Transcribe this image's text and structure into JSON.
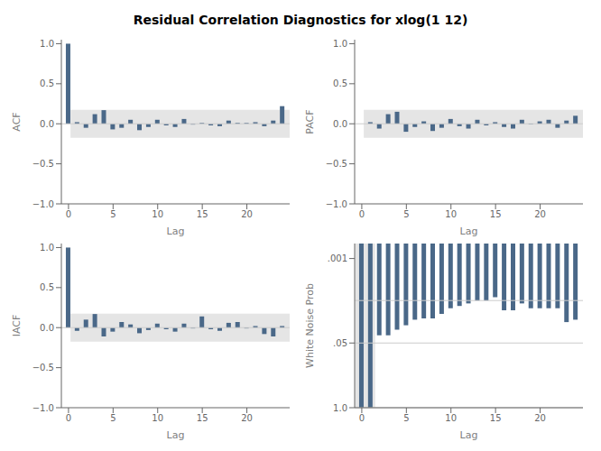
{
  "title": "Residual Correlation Diagnostics for xlog(1 12)",
  "chart_data": [
    {
      "type": "bar",
      "xlabel": "Lag",
      "ylabel": "ACF",
      "color": "#4a6888",
      "x": [
        0,
        1,
        2,
        3,
        4,
        5,
        6,
        7,
        8,
        9,
        10,
        11,
        12,
        13,
        14,
        15,
        16,
        17,
        18,
        19,
        20,
        21,
        22,
        23,
        24
      ],
      "values": [
        1.0,
        0.02,
        -0.05,
        0.12,
        0.17,
        -0.07,
        -0.05,
        0.05,
        -0.08,
        -0.04,
        0.05,
        -0.02,
        -0.04,
        0.06,
        -0.01,
        0.01,
        -0.02,
        -0.03,
        0.04,
        0.01,
        0.01,
        0.02,
        -0.03,
        0.04,
        0.22
      ],
      "xlim": [
        -0.8,
        24.8
      ],
      "xticks": [
        0,
        5,
        10,
        15,
        20
      ],
      "ylim": [
        -1.0,
        1.05
      ],
      "yticks": [
        {
          "value": -1.0,
          "label": "−1.0"
        },
        {
          "value": -0.5,
          "label": "−0.5"
        },
        {
          "value": 0.0,
          "label": "0.0"
        },
        {
          "value": 0.5,
          "label": "0.5"
        },
        {
          "value": 1.0,
          "label": "1.0"
        }
      ],
      "band": [
        -0.175,
        0.175
      ],
      "ref_lines": [
        0
      ],
      "grid": false
    },
    {
      "type": "bar",
      "xlabel": "Lag",
      "ylabel": "PACF",
      "color": "#4a6888",
      "x": [
        0,
        1,
        2,
        3,
        4,
        5,
        6,
        7,
        8,
        9,
        10,
        11,
        12,
        13,
        14,
        15,
        16,
        17,
        18,
        19,
        20,
        21,
        22,
        23,
        24
      ],
      "values": [
        0.0,
        0.02,
        -0.06,
        0.12,
        0.15,
        -0.1,
        -0.04,
        0.03,
        -0.09,
        -0.05,
        0.06,
        -0.03,
        -0.06,
        0.05,
        -0.02,
        0.02,
        -0.04,
        -0.06,
        0.05,
        -0.01,
        0.03,
        0.05,
        -0.05,
        0.04,
        0.1
      ],
      "xlim": [
        -0.8,
        24.8
      ],
      "xticks": [
        0,
        5,
        10,
        15,
        20
      ],
      "ylim": [
        -1.0,
        1.05
      ],
      "yticks": [
        {
          "value": -1.0,
          "label": "−1.0"
        },
        {
          "value": -0.5,
          "label": "−0.5"
        },
        {
          "value": 0.0,
          "label": "0.0"
        },
        {
          "value": 0.5,
          "label": "0.5"
        },
        {
          "value": 1.0,
          "label": "1.0"
        }
      ],
      "band": [
        -0.175,
        0.175
      ],
      "ref_lines": [
        0
      ],
      "grid": false
    },
    {
      "type": "bar",
      "xlabel": "Lag",
      "ylabel": "IACF",
      "color": "#4a6888",
      "x": [
        0,
        1,
        2,
        3,
        4,
        5,
        6,
        7,
        8,
        9,
        10,
        11,
        12,
        13,
        14,
        15,
        16,
        17,
        18,
        19,
        20,
        21,
        22,
        23,
        24
      ],
      "values": [
        1.0,
        -0.04,
        0.1,
        0.17,
        -0.11,
        -0.05,
        0.07,
        0.04,
        -0.07,
        -0.03,
        0.05,
        -0.02,
        -0.05,
        0.05,
        -0.01,
        0.14,
        -0.02,
        -0.04,
        0.06,
        0.07,
        -0.01,
        0.02,
        -0.08,
        -0.11,
        0.02
      ],
      "xlim": [
        -0.8,
        24.8
      ],
      "xticks": [
        0,
        5,
        10,
        15,
        20
      ],
      "ylim": [
        -1.0,
        1.05
      ],
      "yticks": [
        {
          "value": -1.0,
          "label": "−1.0"
        },
        {
          "value": -0.5,
          "label": "−0.5"
        },
        {
          "value": 0.0,
          "label": "0.0"
        },
        {
          "value": 0.5,
          "label": "0.5"
        },
        {
          "value": 1.0,
          "label": "1.0"
        }
      ],
      "band": [
        -0.175,
        0.175
      ],
      "ref_lines": [
        0
      ],
      "grid": false
    },
    {
      "type": "bar",
      "xlabel": "Lag",
      "ylabel": "White Noise Prob",
      "color": "#4a6888",
      "x": [
        0,
        1,
        2,
        3,
        4,
        5,
        6,
        7,
        8,
        9,
        10,
        11,
        12,
        13,
        14,
        15,
        16,
        17,
        18,
        19,
        20,
        21,
        22,
        23,
        24
      ],
      "values": [
        1.0,
        1.0,
        0.035,
        0.035,
        0.027,
        0.022,
        0.017,
        0.016,
        0.016,
        0.013,
        0.01,
        0.009,
        0.008,
        0.007,
        0.007,
        0.006,
        0.011,
        0.011,
        0.008,
        0.01,
        0.01,
        0.01,
        0.01,
        0.019,
        0.017
      ],
      "xlim": [
        -0.8,
        24.8
      ],
      "xticks": [
        0,
        5,
        10,
        15,
        20
      ],
      "ylim": [
        1.0,
        0.0005
      ],
      "log": "y",
      "yticks": [
        {
          "value": 1.0,
          "label": "1.0"
        },
        {
          "value": 0.05,
          "label": ".05"
        },
        {
          "value": 0.001,
          "label": ".001"
        }
      ],
      "highlight": [
        -0.8,
        1.5
      ],
      "ref_lines": [
        0.05,
        0.007,
        1.0
      ],
      "grid": false
    }
  ]
}
